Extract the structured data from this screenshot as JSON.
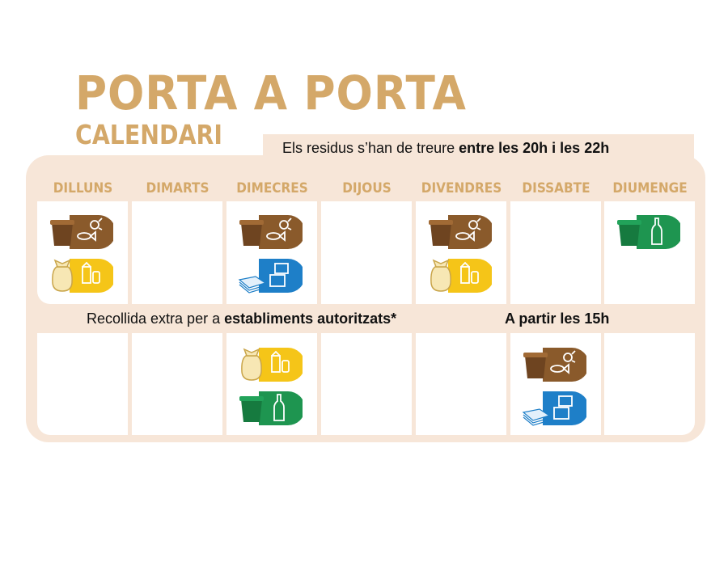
{
  "title": "PORTA A PORTA",
  "subtitle": "CALENDARI",
  "schedule_note": {
    "text": "Els residus s’han de treure ",
    "bold": "entre les 20h i les 22h"
  },
  "days": [
    "DILLUNS",
    "DIMARTS",
    "DIMECRES",
    "DIJOUS",
    "DIVENDRES",
    "DISSABTE",
    "DIUMENGE"
  ],
  "extra_note": {
    "text": "Recollida extra per a ",
    "bold": "establiments autoritzats*",
    "time": "A partir les 15h"
  },
  "colors": {
    "accent": "#d4a869",
    "frame": "#f7e6d8",
    "organic": "#8a5a2b",
    "packaging": "#f5c518",
    "paper": "#1e7fc8",
    "glass": "#1e9550"
  },
  "schedule": {
    "regular": [
      [
        "organic-icon",
        "packaging-icon"
      ],
      [],
      [
        "organic-icon",
        "paper-icon"
      ],
      [],
      [
        "organic-icon",
        "packaging-icon"
      ],
      [],
      [
        "glass-icon"
      ]
    ],
    "extra": [
      [],
      [],
      [
        "packaging-icon",
        "glass-icon"
      ],
      [],
      [],
      [
        "organic-icon",
        "paper-icon"
      ],
      []
    ]
  }
}
